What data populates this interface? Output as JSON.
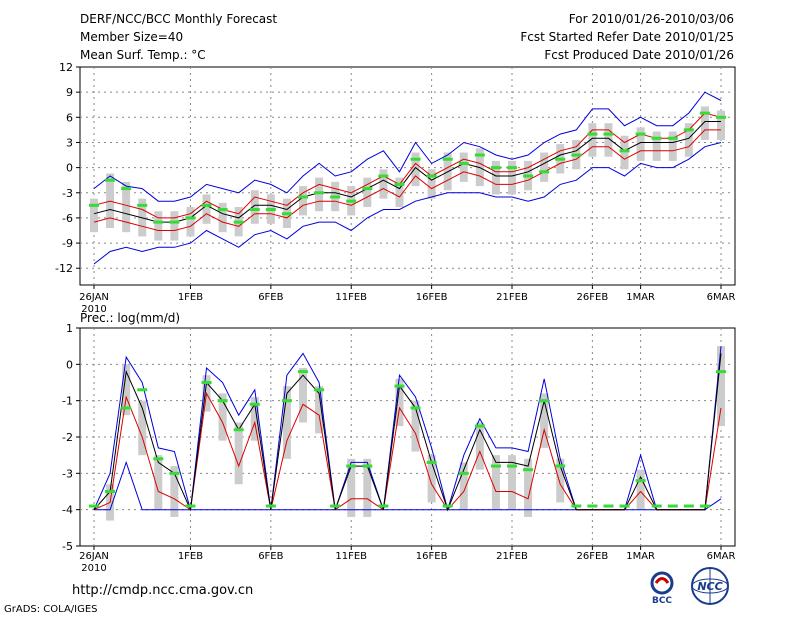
{
  "header": {
    "title": "DERF/NCC/BCC Monthly Forecast",
    "member_size": "Member Size=40",
    "variable": "Mean Surf. Temp.: °C",
    "period": "For 2010/01/26-2010/03/06",
    "fcst_started": "Fcst Started Refer Date 2010/01/25",
    "fcst_produced": "Fcst Produced Date 2010/01/26"
  },
  "footer": {
    "url": "http://cmdp.ncc.cma.gov.cn",
    "grads": "GrADS: COLA/IGES",
    "logo_bcc": "BCC",
    "logo_ncc": "NCC"
  },
  "colors": {
    "ensemble_bar": "#cccccc",
    "mean_line": "#000000",
    "spread_line": "#dd0000",
    "extreme_line": "#0000dd",
    "obs_marker": "#33dd33",
    "grid": "#888888"
  },
  "chart_data": [
    {
      "type": "line",
      "title": "Mean Surf. Temp.: °C",
      "x_dates": [
        "26JAN",
        "27JAN",
        "28JAN",
        "29JAN",
        "30JAN",
        "31JAN",
        "1FEB",
        "2FEB",
        "3FEB",
        "4FEB",
        "5FEB",
        "6FEB",
        "7FEB",
        "8FEB",
        "9FEB",
        "10FEB",
        "11FEB",
        "12FEB",
        "13FEB",
        "14FEB",
        "15FEB",
        "16FEB",
        "17FEB",
        "18FEB",
        "19FEB",
        "20FEB",
        "21FEB",
        "22FEB",
        "23FEB",
        "24FEB",
        "25FEB",
        "26FEB",
        "27FEB",
        "28FEB",
        "1MAR",
        "2MAR",
        "3MAR",
        "4MAR",
        "5MAR",
        "6MAR"
      ],
      "x_tick_labels": [
        "26JAN\n2010",
        "1FEB",
        "6FEB",
        "11FEB",
        "16FEB",
        "21FEB",
        "26FEB",
        "1MAR",
        "6MAR"
      ],
      "x_tick_index": [
        0,
        6,
        11,
        16,
        21,
        26,
        31,
        34,
        39
      ],
      "y_ticks": [
        "12",
        "9",
        "6",
        "3",
        "0",
        "-3",
        "-6",
        "-9",
        "-12"
      ],
      "ylim": [
        -14,
        12
      ],
      "series": [
        {
          "name": "ensemble_max",
          "values": [
            -2.5,
            -1,
            -2.2,
            -2.5,
            -4,
            -4,
            -3.5,
            -2,
            -2.5,
            -3,
            -1.5,
            -2,
            -3,
            -1,
            0.5,
            -1,
            -0.5,
            1,
            2,
            -0.5,
            3,
            0.5,
            1.5,
            3,
            2.5,
            1.5,
            1,
            1.5,
            3,
            4,
            4.5,
            7,
            7,
            5,
            6,
            5,
            5,
            6.5,
            9,
            8
          ]
        },
        {
          "name": "spread_upper",
          "values": [
            -4.5,
            -4,
            -4.5,
            -5,
            -6,
            -6,
            -5.5,
            -4,
            -5,
            -5.5,
            -3.5,
            -4,
            -4.5,
            -3,
            -2,
            -2.5,
            -3,
            -2,
            -1,
            -2,
            0.5,
            -1,
            0,
            1,
            0.5,
            -0.5,
            -0.5,
            0,
            1,
            2,
            2.5,
            4.5,
            4.5,
            3,
            4,
            3.5,
            3.5,
            4.5,
            6.5,
            6
          ]
        },
        {
          "name": "ensemble_mean",
          "values": [
            -5.5,
            -5,
            -5.5,
            -6,
            -6.5,
            -6.5,
            -6,
            -4.5,
            -5.5,
            -6,
            -4.5,
            -4.5,
            -5,
            -3.5,
            -3,
            -3,
            -3.5,
            -2.5,
            -1.5,
            -2.5,
            0,
            -1.5,
            -0.5,
            0.5,
            0,
            -1,
            -1,
            -0.5,
            0.5,
            1.5,
            2,
            3.5,
            3.5,
            2,
            3,
            3,
            3,
            3.5,
            5.5,
            5.5
          ]
        },
        {
          "name": "spread_lower",
          "values": [
            -6.5,
            -6,
            -6.5,
            -7,
            -7.5,
            -7.5,
            -7,
            -5.5,
            -6.5,
            -7,
            -5.5,
            -5.5,
            -6,
            -4.5,
            -4,
            -4,
            -4.5,
            -3.5,
            -2.5,
            -3.5,
            -1,
            -2.5,
            -1.5,
            -0.5,
            -1,
            -2,
            -2,
            -1.5,
            -0.5,
            0.5,
            1,
            2.5,
            2.5,
            1,
            2,
            2,
            2,
            2.5,
            4.5,
            4.5
          ]
        },
        {
          "name": "ensemble_min",
          "values": [
            -11.5,
            -10,
            -9.5,
            -10,
            -9.5,
            -9.5,
            -9,
            -7.5,
            -8.5,
            -9.5,
            -8,
            -7.5,
            -8.5,
            -7,
            -6.5,
            -6.5,
            -7.5,
            -6,
            -5,
            -5,
            -4,
            -3.5,
            -3,
            -3,
            -3,
            -3.5,
            -3.5,
            -4,
            -3.5,
            -2,
            -1.5,
            0,
            0,
            -1,
            0.5,
            0,
            0,
            1,
            2.5,
            3
          ]
        },
        {
          "name": "observed",
          "values": [
            -4.5,
            -1.5,
            -2.5,
            -4.5,
            -6.5,
            -6.5,
            -6,
            -4.5,
            -5,
            -6.5,
            -5,
            -5,
            -5.5,
            -3.5,
            -3,
            -3.5,
            -4,
            -2.5,
            -1,
            -2,
            1,
            -1,
            1,
            0.5,
            1.5,
            0,
            0,
            -1,
            -0.5,
            1,
            1.5,
            4,
            4,
            2,
            4,
            3.5,
            3.5,
            4.5,
            6.5,
            6
          ]
        }
      ]
    },
    {
      "type": "line",
      "title": "Prec.: log(mm/d)",
      "x_dates": [
        "26JAN",
        "27JAN",
        "28JAN",
        "29JAN",
        "30JAN",
        "31JAN",
        "1FEB",
        "2FEB",
        "3FEB",
        "4FEB",
        "5FEB",
        "6FEB",
        "7FEB",
        "8FEB",
        "9FEB",
        "10FEB",
        "11FEB",
        "12FEB",
        "13FEB",
        "14FEB",
        "15FEB",
        "16FEB",
        "17FEB",
        "18FEB",
        "19FEB",
        "20FEB",
        "21FEB",
        "22FEB",
        "23FEB",
        "24FEB",
        "25FEB",
        "26FEB",
        "27FEB",
        "28FEB",
        "1MAR",
        "2MAR",
        "3MAR",
        "4MAR",
        "5MAR",
        "6MAR"
      ],
      "x_tick_labels": [
        "26JAN\n2010",
        "1FEB",
        "6FEB",
        "11FEB",
        "16FEB",
        "21FEB",
        "26FEB",
        "1MAR",
        "6MAR"
      ],
      "x_tick_index": [
        0,
        6,
        11,
        16,
        21,
        26,
        31,
        34,
        39
      ],
      "y_ticks": [
        "1",
        "0",
        "-1",
        "-2",
        "-3",
        "-4",
        "-5"
      ],
      "ylim": [
        -5,
        1
      ],
      "series": [
        {
          "name": "ensemble_max",
          "values": [
            -4,
            -3,
            0.2,
            -0.5,
            -2.3,
            -2.4,
            -4,
            -0.1,
            -0.5,
            -1.4,
            -0.7,
            -4,
            -0.3,
            0.3,
            -0.5,
            -4,
            -2.7,
            -2.7,
            -4,
            -0.3,
            -0.9,
            -2.3,
            -4,
            -2.5,
            -1.5,
            -2.3,
            -2.3,
            -2.4,
            -0.4,
            -2.6,
            -4,
            -4,
            -4,
            -4,
            -2.5,
            -4,
            -4,
            -4,
            -4,
            0.5
          ]
        },
        {
          "name": "ensemble_mean",
          "values": [
            -4,
            -3.5,
            -0.2,
            -1.2,
            -2.7,
            -3,
            -4,
            -0.5,
            -1,
            -1.8,
            -1.1,
            -4,
            -0.8,
            -0.3,
            -0.8,
            -4,
            -2.8,
            -2.8,
            -4,
            -0.6,
            -1.2,
            -2.7,
            -4,
            -2.9,
            -1.8,
            -2.7,
            -2.7,
            -2.8,
            -1,
            -2.8,
            -4,
            -4,
            -4,
            -4,
            -3.1,
            -4,
            -4,
            -4,
            -4,
            0.3
          ]
        },
        {
          "name": "spread_lower",
          "values": [
            -4,
            -3.8,
            -0.9,
            -2,
            -3.5,
            -3.7,
            -4,
            -0.8,
            -1.6,
            -2.8,
            -1.6,
            -4,
            -2.1,
            -1.1,
            -1.4,
            -4,
            -3.7,
            -3.7,
            -4,
            -1.2,
            -1.9,
            -3.3,
            -4,
            -3.5,
            -2.4,
            -3.5,
            -3.5,
            -3.7,
            -1.8,
            -3.3,
            -4,
            -4,
            -4,
            -4,
            -3.5,
            -4,
            -4,
            -4,
            -4,
            -1.2
          ]
        },
        {
          "name": "ensemble_min",
          "values": [
            -4,
            -4,
            -2.7,
            -4,
            -4,
            -4,
            -4,
            -4,
            -4,
            -4,
            -4,
            -4,
            -4,
            -4,
            -4,
            -4,
            -4,
            -4,
            -4,
            -4,
            -4,
            -4,
            -4,
            -4,
            -4,
            -4,
            -4,
            -4,
            -4,
            -4,
            -4,
            -4,
            -4,
            -4,
            -4,
            -4,
            -4,
            -4,
            -4,
            -3.7
          ]
        },
        {
          "name": "observed",
          "values": [
            -3.9,
            -3.5,
            -1.2,
            -0.7,
            -2.6,
            -3,
            -3.9,
            -0.5,
            -1,
            -1.8,
            -1.1,
            -3.9,
            -1,
            -0.2,
            -0.7,
            -3.9,
            -2.8,
            -2.8,
            -3.9,
            -0.6,
            -1.2,
            -2.7,
            -3.9,
            -3,
            -1.7,
            -2.8,
            -2.8,
            -2.9,
            -1,
            -2.8,
            -3.9,
            -3.9,
            -3.9,
            -3.9,
            -3.2,
            -3.9,
            -3.9,
            -3.9,
            -3.9,
            -0.2
          ]
        }
      ]
    }
  ]
}
